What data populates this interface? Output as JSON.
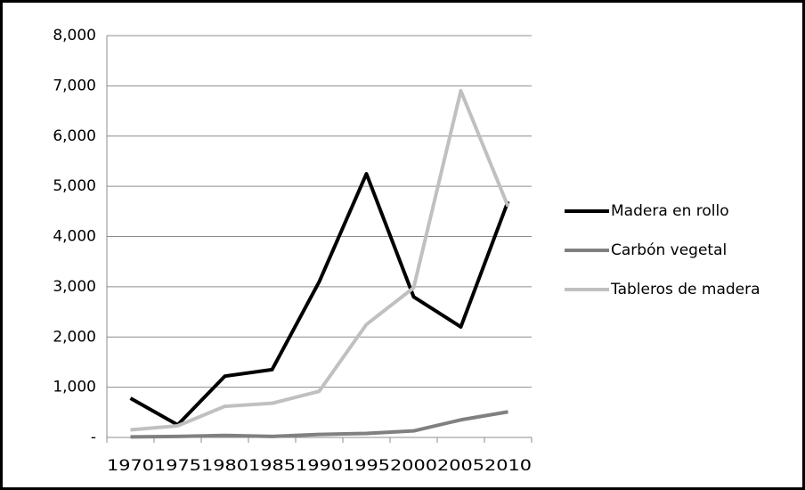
{
  "chart_data": {
    "type": "line",
    "categories": [
      "1970",
      "1975",
      "1980",
      "1985",
      "1990",
      "1995",
      "2000",
      "2005",
      "2010"
    ],
    "series": [
      {
        "name": "Madera en rollo",
        "color": "#000000",
        "values": [
          780,
          250,
          1220,
          1350,
          3100,
          5250,
          2800,
          2200,
          4700
        ]
      },
      {
        "name": "Carbón vegetal",
        "color": "#808080",
        "values": [
          10,
          20,
          40,
          20,
          60,
          80,
          130,
          350,
          510
        ]
      },
      {
        "name": "Tableros de madera",
        "color": "#c0c0c0",
        "values": [
          150,
          230,
          620,
          680,
          920,
          2250,
          2980,
          6900,
          4600
        ]
      }
    ],
    "ylim": [
      0,
      8000
    ],
    "yticks": [
      {
        "value": 0,
        "label": "-"
      },
      {
        "value": 1000,
        "label": "1,000"
      },
      {
        "value": 2000,
        "label": "2,000"
      },
      {
        "value": 3000,
        "label": "3,000"
      },
      {
        "value": 4000,
        "label": "4,000"
      },
      {
        "value": 5000,
        "label": "5,000"
      },
      {
        "value": 6000,
        "label": "6,000"
      },
      {
        "value": 7000,
        "label": "7,000"
      },
      {
        "value": 8000,
        "label": "8,000"
      }
    ],
    "grid": true
  }
}
